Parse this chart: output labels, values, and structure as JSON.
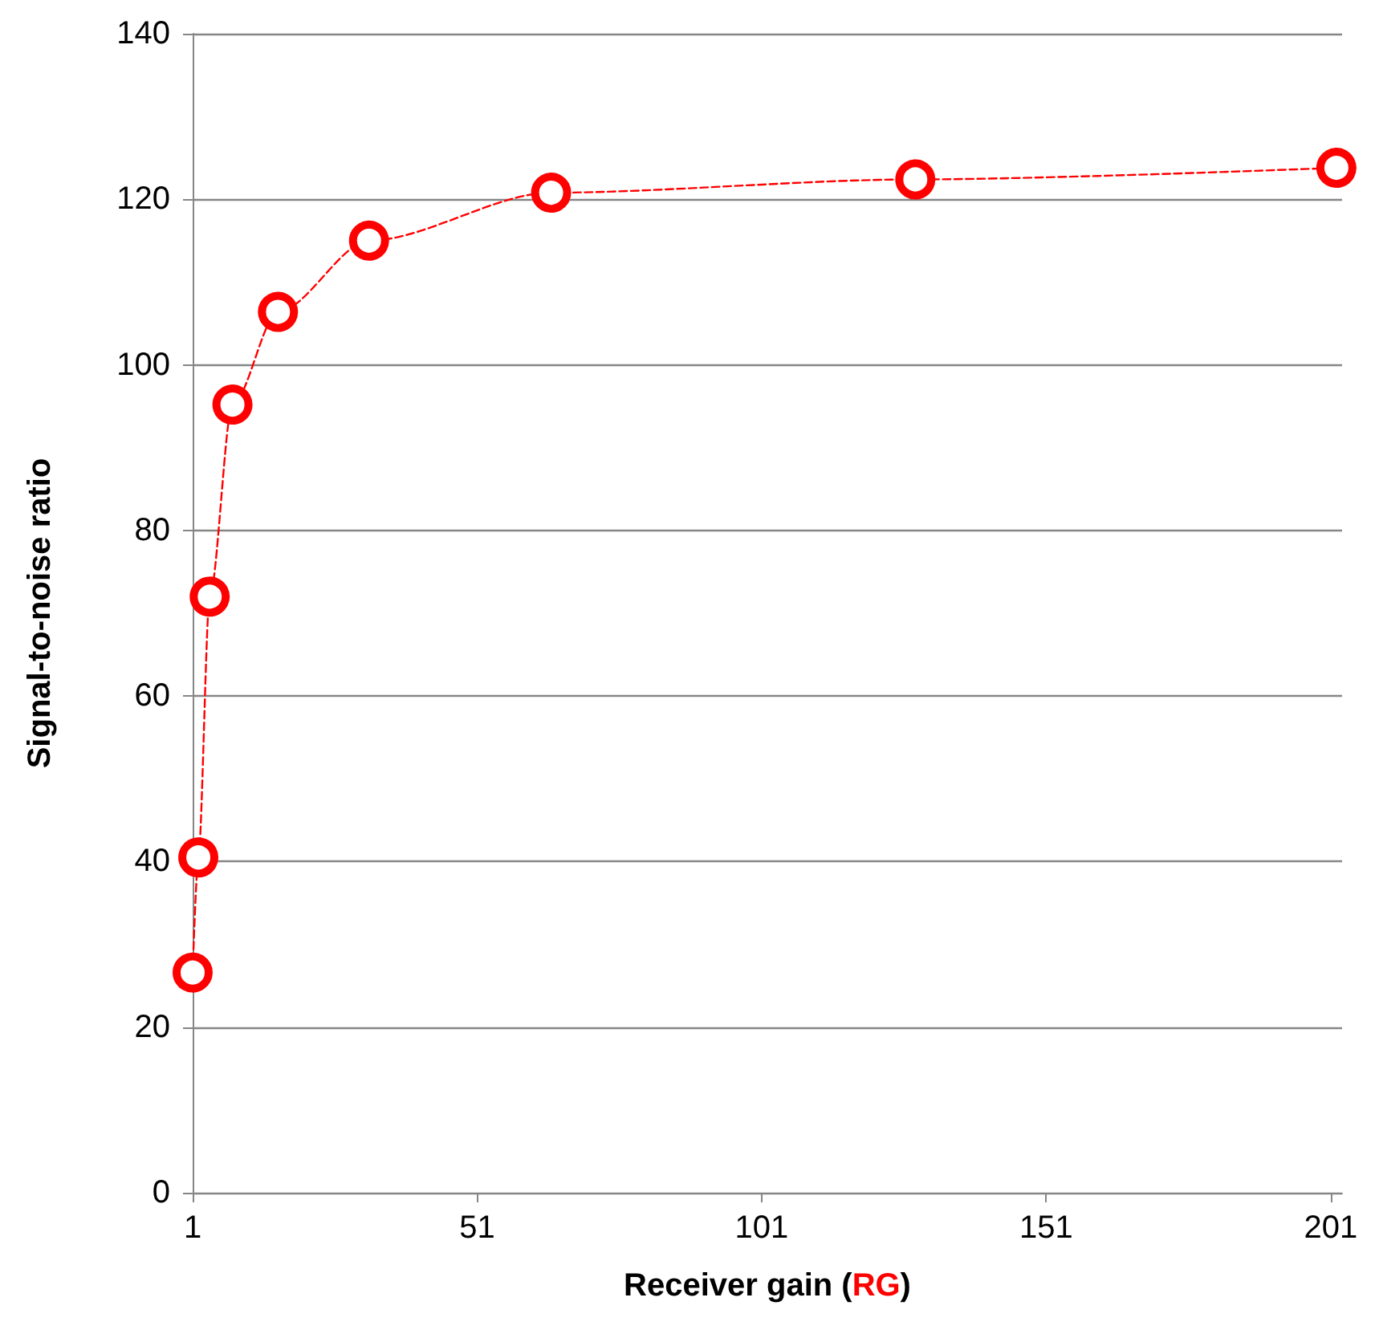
{
  "chart_data": {
    "type": "line",
    "xlabel": "Receiver gain (RG)",
    "ylabel": "Signal-to-noise ratio",
    "series": [
      {
        "color": "#ff0000",
        "x": [
          1,
          2,
          4,
          8,
          16,
          32,
          64,
          128,
          202
        ],
        "values": [
          26.6,
          40.5,
          72,
          95.2,
          106.4,
          115,
          120.8,
          122.4,
          123.8
        ]
      }
    ],
    "xlim": [
      1,
      203
    ],
    "xticks": [
      1,
      51,
      101,
      151,
      201
    ],
    "ylim": [
      0,
      140
    ],
    "yticks": [
      0,
      20,
      40,
      60,
      80,
      100,
      120,
      140
    ],
    "grid": "y",
    "marker": "circle",
    "line_style": "dashed"
  }
}
